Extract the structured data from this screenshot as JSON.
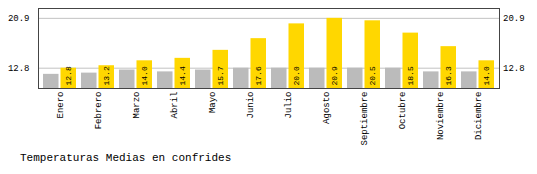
{
  "chart_data": {
    "type": "bar",
    "title": "Temperaturas Medias en confrides",
    "categories": [
      "Enero",
      "Febrero",
      "Marzo",
      "Abril",
      "Mayo",
      "Junio",
      "Julio",
      "Agosto",
      "Septiembre",
      "Octubre",
      "Noviembre",
      "Diciembre"
    ],
    "series": [
      {
        "color": "#BBBBBB",
        "values": [
          11.8,
          12.0,
          12.5,
          12.2,
          12.5,
          12.8,
          12.8,
          12.8,
          12.8,
          12.8,
          12.2,
          12.2
        ]
      },
      {
        "color": "#FFD700",
        "values": [
          12.8,
          13.2,
          14.0,
          14.4,
          15.7,
          17.6,
          20.0,
          20.9,
          20.5,
          18.5,
          16.3,
          14.0
        ],
        "value_labels": [
          "12.8",
          "13.2",
          "14.0",
          "14.4",
          "15.7",
          "17.6",
          "20.0",
          "20.9",
          "20.5",
          "18.5",
          "16.3",
          "14.0"
        ],
        "data_labels": true
      }
    ],
    "ylim": [
      9.5,
      22.5
    ],
    "yticks": [
      12.8,
      20.9
    ],
    "y2lim": [
      9.5,
      22.5
    ],
    "y2ticks": [
      12.8,
      20.9
    ],
    "grid": true
  }
}
